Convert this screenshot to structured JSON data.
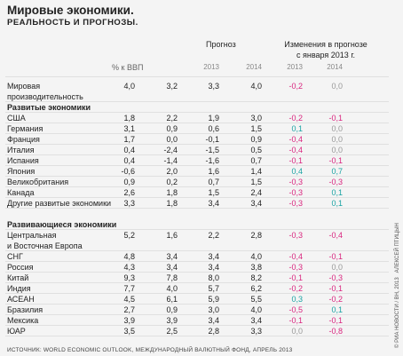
{
  "header": {
    "title": "Мировые экономики.",
    "subtitle": "РЕАЛЬНОСТЬ И ПРОГНОЗЫ."
  },
  "table": {
    "columns": {
      "unit": "% к ВВП",
      "forecast": "Прогноз",
      "changes": "Изменения в прогнозе\nс января 2013 г.",
      "years": [
        "2013",
        "2014",
        "2013",
        "2014"
      ]
    },
    "rows": [
      {
        "name": "Мировая\nпроизводительность",
        "values": [
          "4,0",
          "3,2",
          "3,3",
          "4,0",
          "-0,2",
          "0,0"
        ]
      },
      {
        "section": "Развитые экономики"
      },
      {
        "name": "США",
        "values": [
          "1,8",
          "2,2",
          "1,9",
          "3,0",
          "-0,2",
          "-0,1"
        ]
      },
      {
        "name": "Германия",
        "values": [
          "3,1",
          "0,9",
          "0,6",
          "1,5",
          "0,1",
          "0,0"
        ]
      },
      {
        "name": "Франция",
        "values": [
          "1,7",
          "0,0",
          "-0,1",
          "0,9",
          "-0,4",
          "0,0"
        ]
      },
      {
        "name": "Италия",
        "values": [
          "0,4",
          "-2,4",
          "-1,5",
          "0,5",
          "-0,4",
          "0,0"
        ]
      },
      {
        "name": "Испания",
        "values": [
          "0,4",
          "-1,4",
          "-1,6",
          "0,7",
          "-0,1",
          "-0,1"
        ]
      },
      {
        "name": "Япония",
        "values": [
          "-0,6",
          "2,0",
          "1,6",
          "1,4",
          "0,4",
          "0,7"
        ]
      },
      {
        "name": "Великобритания",
        "values": [
          "0,9",
          "0,2",
          "0,7",
          "1,5",
          "-0,3",
          "-0,3"
        ]
      },
      {
        "name": "Канада",
        "values": [
          "2,6",
          "1,8",
          "1,5",
          "2,4",
          "-0,3",
          "0,1"
        ]
      },
      {
        "name": "Другие развитые экономики",
        "values": [
          "3,3",
          "1,8",
          "3,4",
          "3,4",
          "-0,3",
          "0,1"
        ]
      },
      {
        "section": "Развивающиеся экономики"
      },
      {
        "name": "Центральная\nи Восточная Европа",
        "values": [
          "5,2",
          "1,6",
          "2,2",
          "2,8",
          "-0,3",
          "-0,4"
        ]
      },
      {
        "name": "СНГ",
        "values": [
          "4,8",
          "3,4",
          "3,4",
          "4,0",
          "-0,4",
          "-0,1"
        ]
      },
      {
        "name": "Россия",
        "values": [
          "4,3",
          "3,4",
          "3,4",
          "3,8",
          "-0,3",
          "0,0"
        ]
      },
      {
        "name": "Китай",
        "values": [
          "9,3",
          "7,8",
          "8,0",
          "8,2",
          "-0,1",
          "-0,3"
        ]
      },
      {
        "name": "Индия",
        "values": [
          "7,7",
          "4,0",
          "5,7",
          "6,2",
          "-0,2",
          "-0,1"
        ]
      },
      {
        "name": "АСЕАН",
        "values": [
          "4,5",
          "6,1",
          "5,9",
          "5,5",
          "0,3",
          "-0,2"
        ]
      },
      {
        "name": "Бразилия",
        "values": [
          "2,7",
          "0,9",
          "3,0",
          "4,0",
          "-0,5",
          "0,1"
        ]
      },
      {
        "name": "Мексика",
        "values": [
          "3,9",
          "3,9",
          "3,4",
          "3,4",
          "-0,1",
          "-0,1"
        ]
      },
      {
        "name": "ЮАР",
        "values": [
          "3,5",
          "2,5",
          "2,8",
          "3,3",
          "0,0",
          "-0,8"
        ]
      }
    ]
  },
  "source": "ИСТОЧНИК: WORLD ECONOMIC OUTLOOK, МЕЖДУНАРОДНЫЙ ВАЛЮТНЫЙ ФОНД, АПРЕЛЬ 2013",
  "credit": "© РИА НОВОСТИ / ВН, 2013   АЛЕКСЕЙ ПТИЦЫН"
}
